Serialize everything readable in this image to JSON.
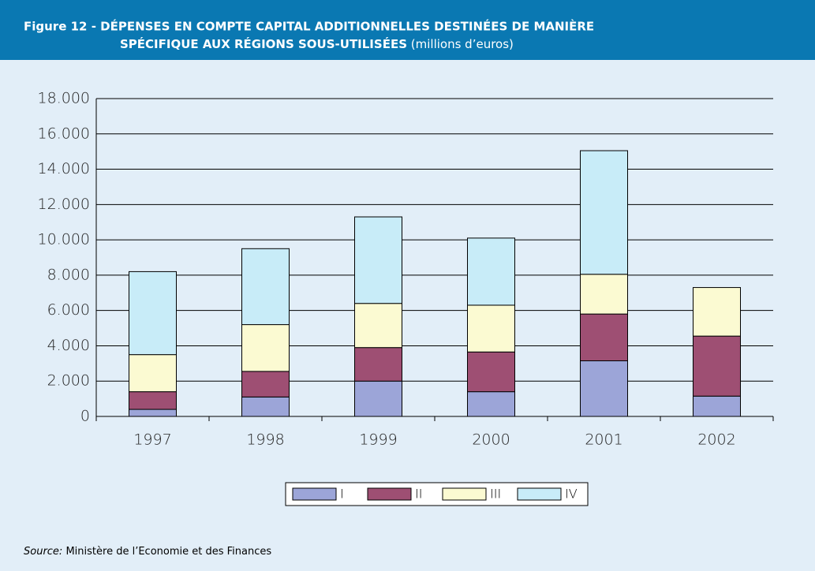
{
  "chart_data": {
    "type": "stacked_bar",
    "title_lines": [
      "Figure 12 - DÉPENSES EN COMPTE CAPITAL ADDITIONNELLES DESTINÉES DE MANIÈRE",
      "SPÉCIFIQUE AUX RÉGIONS SOUS-UTILISÉES"
    ],
    "subtitle": "(millions d’euros)",
    "categories": [
      "1997",
      "1998",
      "1999",
      "2000",
      "2001",
      "2002"
    ],
    "series": [
      {
        "name": "I",
        "color": "#9ca5d8",
        "values": [
          400,
          1100,
          2000,
          1400,
          3150,
          1150
        ]
      },
      {
        "name": "II",
        "color": "#9e4f73",
        "values": [
          1000,
          1450,
          1900,
          2250,
          2650,
          3400
        ]
      },
      {
        "name": "III",
        "color": "#fbfad2",
        "values": [
          2100,
          2650,
          2500,
          2650,
          2250,
          2750
        ]
      },
      {
        "name": "IV",
        "color": "#c8ecf8",
        "values": [
          4700,
          4300,
          4900,
          3800,
          7000,
          0
        ]
      }
    ],
    "ylim": [
      0,
      18000
    ],
    "yticks": [
      0,
      {
        "value": 2000,
        "label": "2.000"
      },
      {
        "value": 4000,
        "label": "4.000"
      },
      {
        "value": 6000,
        "label": "6.000"
      },
      {
        "value": 8000,
        "label": "8.000"
      },
      {
        "value": 10000,
        "label": "10.000"
      },
      {
        "value": 12000,
        "label": "12.000"
      },
      {
        "value": 14000,
        "label": "14.000"
      },
      {
        "value": 16000,
        "label": "16.000"
      },
      {
        "value": 18000,
        "label": "18.000"
      }
    ],
    "grid": true,
    "legend": "bottom",
    "source_label": "Source:",
    "source": "Ministère de l’Economie et des Finances"
  }
}
